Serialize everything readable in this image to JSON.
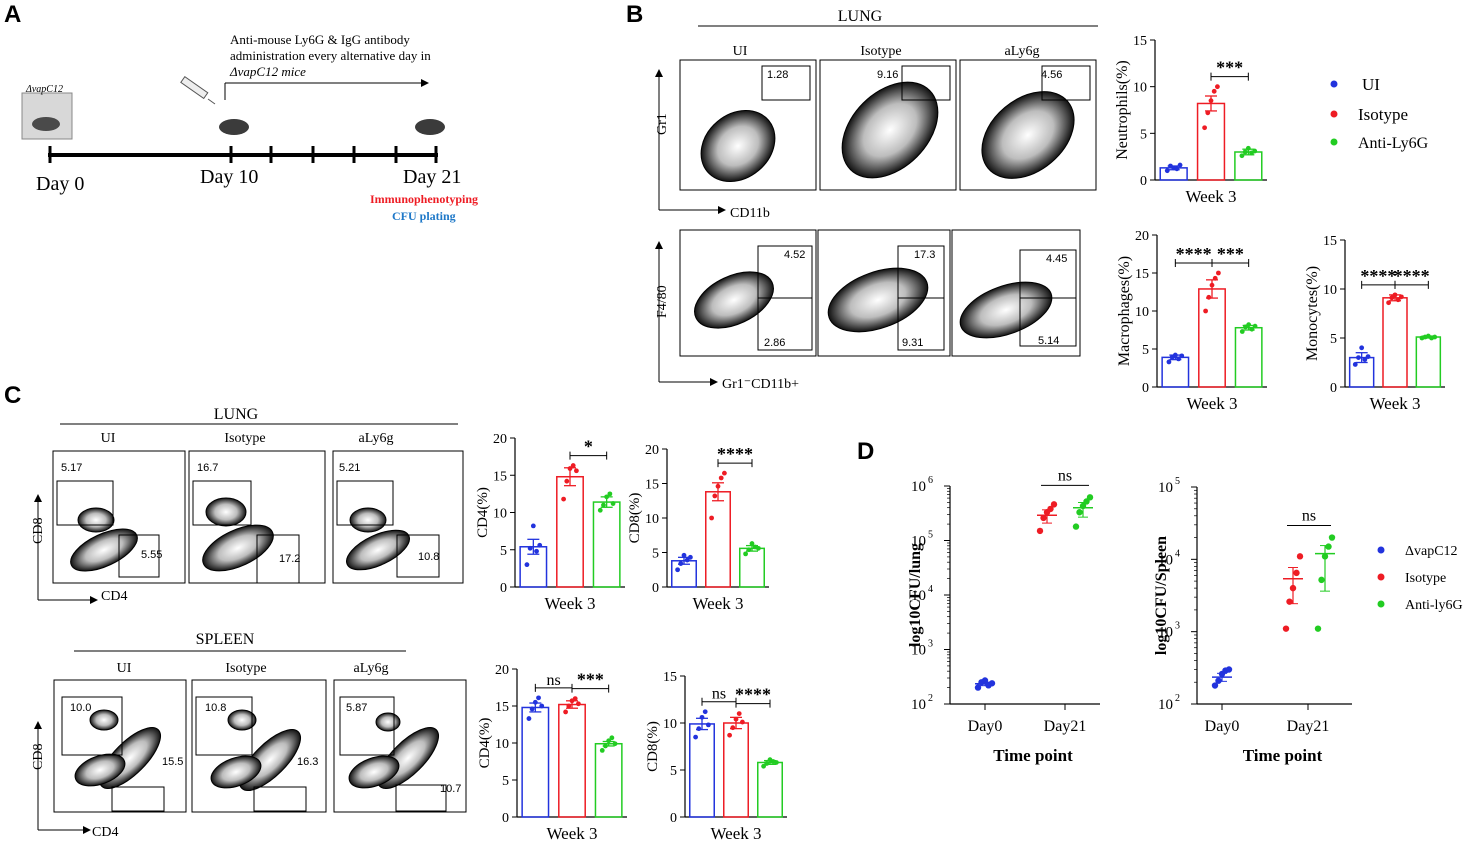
{
  "colors": {
    "ui": "#2233dd",
    "isotype": "#ee1c24",
    "aly6g": "#22cc22",
    "red_text": "#ee1c24",
    "blue_text": "#1e78c8"
  },
  "panelA": {
    "label": "A",
    "mouse_box_label": "ΔvapC12",
    "antibody_note": [
      "Anti-mouse Ly6G & IgG antibody",
      "administration every alternative  day in",
      "ΔvapC12 mice"
    ],
    "day0": "Day 0",
    "day10": "Day 10",
    "day21": "Day 21",
    "immuno": "Immunophenotyping",
    "cfu": "CFU plating"
  },
  "panelB": {
    "label": "B",
    "title": "LUNG",
    "cols": [
      "UI",
      "Isotype",
      "aLy6g"
    ],
    "gr1_gates": [
      "1.28",
      "9.16",
      "4.56"
    ],
    "f480_hi_gates": [
      "4.52",
      "17.3",
      "4.45"
    ],
    "f480_lo_gates": [
      "2.86",
      "9.31",
      "5.14"
    ],
    "y1": "Gr1",
    "x1": "CD11b",
    "y2": "F4/80",
    "x2": "Gr1⁻CD11b+",
    "legend": [
      "UI",
      "Isotype",
      "Anti-Ly6G"
    ]
  },
  "panelC": {
    "label": "C",
    "lung_title": "LUNG",
    "spleen_title": "SPLEEN",
    "cols": [
      "UI",
      "Isotype",
      "aLy6g"
    ],
    "lung_cd8": [
      "5.17",
      "16.7",
      "5.21"
    ],
    "lung_cd4": [
      "5.55",
      "17.2",
      "10.8"
    ],
    "spl_cd8": [
      "10.0",
      "10.8",
      "5.87"
    ],
    "spl_cd4": [
      "15.5",
      "16.3",
      "10.7"
    ],
    "y": "CD8",
    "x": "CD4"
  },
  "panelD": {
    "label": "D",
    "legend": [
      "ΔvapC12",
      "Isotype",
      "Anti-ly6G"
    ]
  },
  "chart_data": [
    {
      "id": "neutrophils",
      "type": "bar",
      "title": "",
      "xlabel": "Week 3",
      "ylabel": "Neutrophils(%)",
      "ylim": [
        0,
        15
      ],
      "ticks": [
        0,
        5,
        10,
        15
      ],
      "categories": [
        "UI",
        "Isotype",
        "Anti-Ly6G"
      ],
      "values": [
        1.3,
        8.2,
        3.0
      ],
      "sem": [
        0.2,
        0.8,
        0.3
      ],
      "points": [
        [
          1.0,
          1.5,
          1.3,
          1.2,
          1.6
        ],
        [
          5.6,
          7.2,
          8.5,
          9.5,
          10.0
        ],
        [
          2.6,
          3.0,
          3.4,
          2.9,
          3.1
        ]
      ],
      "significance": [
        {
          "from": 1,
          "to": 2,
          "label": "***"
        }
      ]
    },
    {
      "id": "macrophages",
      "type": "bar",
      "title": "",
      "xlabel": "Week 3",
      "ylabel": "Macrophages(%)",
      "ylim": [
        0,
        20
      ],
      "ticks": [
        0,
        5,
        10,
        15,
        20
      ],
      "categories": [
        "UI",
        "Isotype",
        "Anti-Ly6G"
      ],
      "values": [
        3.9,
        12.9,
        7.8
      ],
      "sem": [
        0.3,
        1.2,
        0.3
      ],
      "points": [
        [
          3.3,
          3.9,
          4.2,
          3.7,
          4.1
        ],
        [
          10.0,
          11.8,
          13.4,
          14.3,
          15.0
        ],
        [
          7.3,
          7.9,
          8.2,
          7.6,
          8.0
        ]
      ],
      "significance": [
        {
          "from": 0,
          "to": 1,
          "label": "****"
        },
        {
          "from": 1,
          "to": 2,
          "label": "***"
        }
      ]
    },
    {
      "id": "monocytes",
      "type": "bar",
      "title": "",
      "xlabel": "Week 3",
      "ylabel": "Monocytes(%)",
      "ylim": [
        0,
        15
      ],
      "ticks": [
        0,
        5,
        10,
        15
      ],
      "categories": [
        "UI",
        "Isotype",
        "Anti-Ly6G"
      ],
      "values": [
        3.0,
        9.1,
        5.1
      ],
      "sem": [
        0.5,
        0.3,
        0.1
      ],
      "points": [
        [
          2.3,
          3.0,
          4.0,
          2.8,
          3.1
        ],
        [
          8.6,
          9.1,
          9.4,
          8.9,
          9.2
        ],
        [
          5.0,
          5.1,
          5.2,
          5.0,
          5.1
        ]
      ],
      "significance": [
        {
          "from": 0,
          "to": 1,
          "label": "****"
        },
        {
          "from": 1,
          "to": 2,
          "label": "****"
        }
      ]
    },
    {
      "id": "lung_cd4",
      "type": "bar",
      "title": "",
      "xlabel": "Week 3",
      "ylabel": "CD4(%)",
      "ylim": [
        0,
        20
      ],
      "ticks": [
        0,
        5,
        10,
        15,
        20
      ],
      "categories": [
        "UI",
        "Isotype",
        "Anti-Ly6G"
      ],
      "values": [
        5.4,
        14.8,
        11.4
      ],
      "sem": [
        1.0,
        1.2,
        0.7
      ],
      "points": [
        [
          3.0,
          5.2,
          8.2,
          4.8,
          5.6
        ],
        [
          11.8,
          14.2,
          15.9,
          16.3,
          15.6
        ],
        [
          10.3,
          11.0,
          12.1,
          12.5,
          11.2
        ]
      ],
      "significance": [
        {
          "from": 1,
          "to": 2,
          "label": "*"
        }
      ]
    },
    {
      "id": "lung_cd8",
      "type": "bar",
      "title": "",
      "xlabel": "Week 3",
      "ylabel": "CD8(%)",
      "ylim": [
        0,
        20
      ],
      "ticks": [
        0,
        5,
        10,
        15,
        20
      ],
      "categories": [
        "UI",
        "Isotype",
        "Anti-Ly6G"
      ],
      "values": [
        3.8,
        13.8,
        5.6
      ],
      "sem": [
        0.5,
        1.3,
        0.4
      ],
      "points": [
        [
          2.5,
          3.4,
          4.6,
          3.9,
          4.3
        ],
        [
          10.0,
          13.2,
          14.6,
          15.8,
          16.5
        ],
        [
          4.8,
          5.4,
          6.3,
          5.8,
          5.6
        ]
      ],
      "significance": [
        {
          "from": 1,
          "to": 2,
          "label": "****"
        }
      ]
    },
    {
      "id": "spleen_cd4",
      "type": "bar",
      "title": "",
      "xlabel": "Week 3",
      "ylabel": "CD4(%)",
      "ylim": [
        0,
        20
      ],
      "ticks": [
        0,
        5,
        10,
        15,
        20
      ],
      "categories": [
        "UI",
        "Isotype",
        "Anti-Ly6G"
      ],
      "values": [
        14.8,
        15.2,
        9.9
      ],
      "sem": [
        0.6,
        0.5,
        0.3
      ],
      "points": [
        [
          13.3,
          14.6,
          15.5,
          16.1,
          15.0
        ],
        [
          14.2,
          15.0,
          15.7,
          16.0,
          15.3
        ],
        [
          9.0,
          9.6,
          10.3,
          10.7,
          9.9
        ]
      ],
      "significance": [
        {
          "from": 0,
          "to": 1,
          "label": "ns"
        },
        {
          "from": 1,
          "to": 2,
          "label": "***"
        }
      ]
    },
    {
      "id": "spleen_cd8",
      "type": "bar",
      "title": "",
      "xlabel": "Week 3",
      "ylabel": "CD8(%)",
      "ylim": [
        0,
        15
      ],
      "ticks": [
        0,
        5,
        10,
        15
      ],
      "categories": [
        "UI",
        "Isotype",
        "Anti-Ly6G"
      ],
      "values": [
        9.9,
        10.0,
        5.8
      ],
      "sem": [
        0.6,
        0.6,
        0.2
      ],
      "points": [
        [
          8.5,
          9.4,
          10.6,
          11.2,
          9.8
        ],
        [
          8.7,
          9.5,
          10.4,
          11.0,
          10.1
        ],
        [
          5.4,
          5.7,
          6.1,
          5.9,
          5.8
        ]
      ],
      "significance": [
        {
          "from": 0,
          "to": 1,
          "label": "ns"
        },
        {
          "from": 1,
          "to": 2,
          "label": "****"
        }
      ]
    },
    {
      "id": "cfu_lung",
      "type": "scatter",
      "yscale": "log",
      "title": "",
      "xlabel": "Time point",
      "ylabel": "log10CFU/lung",
      "ylim": [
        100,
        1000000
      ],
      "tick_exponents": [
        2,
        3,
        4,
        5,
        6
      ],
      "categories": [
        "Day0",
        "Day21"
      ],
      "series": [
        {
          "name": "ΔvapC12",
          "x": "Day0",
          "values": [
            200,
            250,
            270,
            220,
            240
          ],
          "mean": 235
        },
        {
          "name": "Isotype",
          "x": "Day21",
          "values": [
            150000,
            260000,
            330000,
            380000,
            460000
          ],
          "mean": 290000
        },
        {
          "name": "Anti-ly6G",
          "x": "Day21",
          "values": [
            180000,
            330000,
            430000,
            520000,
            620000
          ],
          "mean": 400000
        }
      ],
      "significance": [
        {
          "label": "ns",
          "between": [
            "Isotype",
            "Anti-ly6G"
          ]
        }
      ]
    },
    {
      "id": "cfu_spleen",
      "type": "scatter",
      "yscale": "log",
      "title": "",
      "xlabel": "Time point",
      "ylabel": "log10CFU/Spleen",
      "ylim": [
        100,
        100000
      ],
      "tick_exponents": [
        2,
        3,
        4,
        5
      ],
      "categories": [
        "Day0",
        "Day21"
      ],
      "series": [
        {
          "name": "ΔvapC12",
          "x": "Day0",
          "values": [
            180,
            210,
            260,
            290,
            300
          ],
          "mean": 235
        },
        {
          "name": "Isotype",
          "x": "Day21",
          "values": [
            1100,
            2600,
            4000,
            6500,
            11000
          ],
          "mean": 5400
        },
        {
          "name": "Anti-ly6G",
          "x": "Day21",
          "values": [
            1100,
            5200,
            11000,
            15000,
            20000
          ],
          "mean": 12000
        }
      ],
      "significance": [
        {
          "label": "ns",
          "between": [
            "Isotype",
            "Anti-ly6G"
          ]
        }
      ]
    }
  ]
}
